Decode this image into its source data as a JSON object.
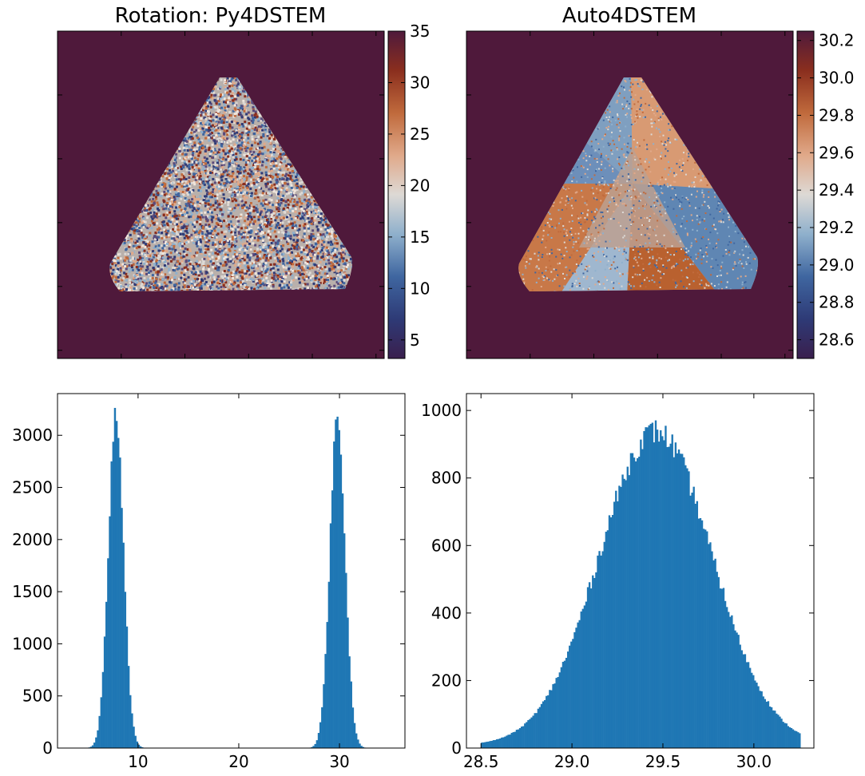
{
  "figure": {
    "background": "#ffffff",
    "accent": "#1f77b4"
  },
  "chart_data": [
    {
      "type": "heatmap",
      "title": "Rotation: Py4DSTEM",
      "description_shape": "triangle",
      "pattern": "noise",
      "background_value": 35,
      "colorbar": {
        "ticks": [
          5,
          10,
          15,
          20,
          25,
          30,
          35
        ],
        "range": [
          3.2,
          35.0
        ]
      },
      "xticklabels_visible": false,
      "yticklabels_visible": false
    },
    {
      "type": "heatmap",
      "title": "Auto4DSTEM",
      "description_shape": "triangle",
      "pattern": "smooth-sectors",
      "background_value": 30.25,
      "colorbar": {
        "ticks": [
          "28.6",
          "28.8",
          "29.0",
          "29.2",
          "29.4",
          "29.6",
          "29.8",
          "30.0",
          "30.2"
        ],
        "range": [
          28.5,
          30.25
        ]
      },
      "xticklabels_visible": false,
      "yticklabels_visible": false
    },
    {
      "type": "bar",
      "histogram": true,
      "title": "",
      "xlim": [
        2,
        36.5
      ],
      "ylim": [
        0,
        3400
      ],
      "xticks": [
        10,
        20,
        30
      ],
      "yticks": [
        0,
        500,
        1000,
        1500,
        2000,
        2500,
        3000
      ],
      "bin_width": 0.17,
      "peaks": [
        {
          "center": 7.8,
          "sigma": 0.75,
          "height": 3200
        },
        {
          "center": 29.8,
          "sigma": 0.75,
          "height": 3180
        }
      ]
    },
    {
      "type": "bar",
      "histogram": true,
      "title": "",
      "xlim": [
        28.42,
        30.33
      ],
      "ylim": [
        0,
        1050
      ],
      "xticks": [
        "28.5",
        "29.0",
        "29.5",
        "30.0"
      ],
      "yticks": [
        0,
        200,
        400,
        600,
        800,
        1000
      ],
      "bin_width": 0.0091,
      "data_range": [
        28.5,
        30.25
      ],
      "peaks": [
        {
          "center": 29.46,
          "sigma": 0.31,
          "height": 930
        }
      ]
    }
  ]
}
